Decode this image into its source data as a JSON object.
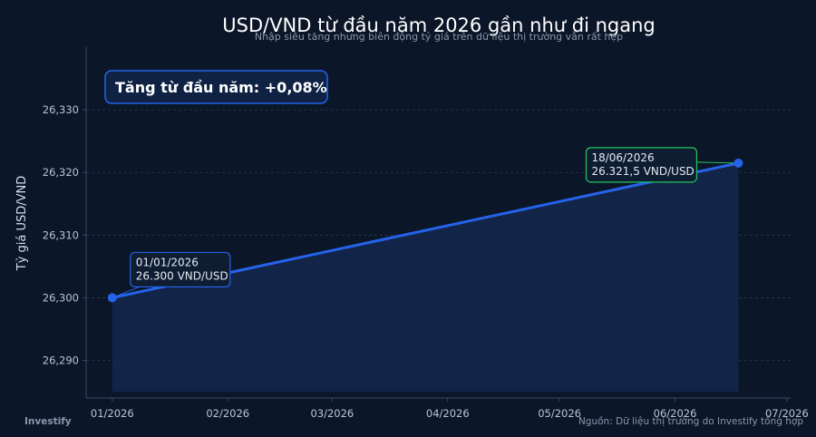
{
  "chart_data": {
    "type": "area",
    "title": "USD/VND từ đầu năm 2026 gần như đi ngang",
    "subtitle": "Nhập siêu tăng nhưng biên động tỷ giá trên dữ liệu thị trường vẫn rất hẹp",
    "xlabel": "",
    "ylabel": "Tỷ giá USD/VND",
    "x_ticks": [
      "01/2026",
      "02/2026",
      "03/2026",
      "04/2026",
      "05/2026",
      "06/2026",
      "07/2026"
    ],
    "y_ticks": [
      "26,290",
      "26,300",
      "26,310",
      "26,320",
      "26,330"
    ],
    "ylim": [
      26284,
      26340
    ],
    "xlim": [
      "2025-12-25",
      "2026-07-02"
    ],
    "grid": true,
    "series": [
      {
        "x": [
          "2026-01-01",
          "2026-06-18"
        ],
        "values": [
          26300,
          26321.5
        ],
        "color": "#2563eb"
      }
    ],
    "annotations": [
      {
        "x": "2026-01-01",
        "y": 26300,
        "date": "01/01/2026",
        "value": "26.300 VND/USD",
        "border": "#2563eb"
      },
      {
        "x": "2026-06-18",
        "y": 26321.5,
        "date": "18/06/2026",
        "value": "26.321,5 VND/USD",
        "border": "#22c55e"
      }
    ],
    "kpi": "Tăng từ đầu năm: +0,08%",
    "brand": "Investify",
    "source": "Nguồn: Dữ liệu thị trường do Investify tổng hợp"
  },
  "colors": {
    "background": "#0b1628",
    "line": "#2563eb",
    "area": "#14284d",
    "grid": "#2a3a52",
    "start_annotation": "#2563eb",
    "end_annotation": "#22c55e"
  }
}
